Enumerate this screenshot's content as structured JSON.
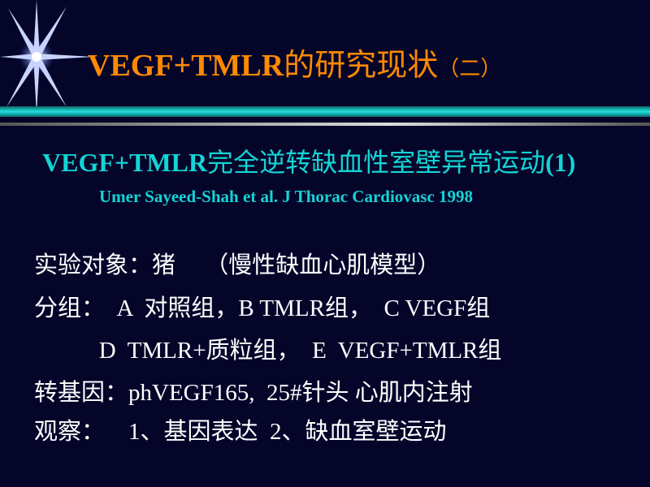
{
  "title": {
    "latin": "VEGF+TMLR",
    "cn": "的研究现状",
    "suffix": "（二）"
  },
  "subtitle": {
    "latin": "VEGF+TMLR",
    "cn": "完全逆转缺血性室壁异常运动",
    "suffix": "(1)"
  },
  "citation": "Umer Sayeed-Shah et al.  J Thorac Cardiovasc 1998",
  "body": [
    "实验对象：猪     （慢性缺血心肌模型）",
    "分组：  A  对照组，B TMLR组，  C VEGF组",
    "           D  TMLR+质粒组，  E  VEGF+TMLR组",
    "转基因：phVEGF165,  25#针头 心肌内注射",
    "观察：    1、基因表达  2、缺血室壁运动"
  ],
  "colors": {
    "background": "#05052a",
    "title": "#ff8a00",
    "subtitle": "#14d4d4",
    "body": "#ffffff"
  },
  "decoration_icon": "star-burst-icon"
}
